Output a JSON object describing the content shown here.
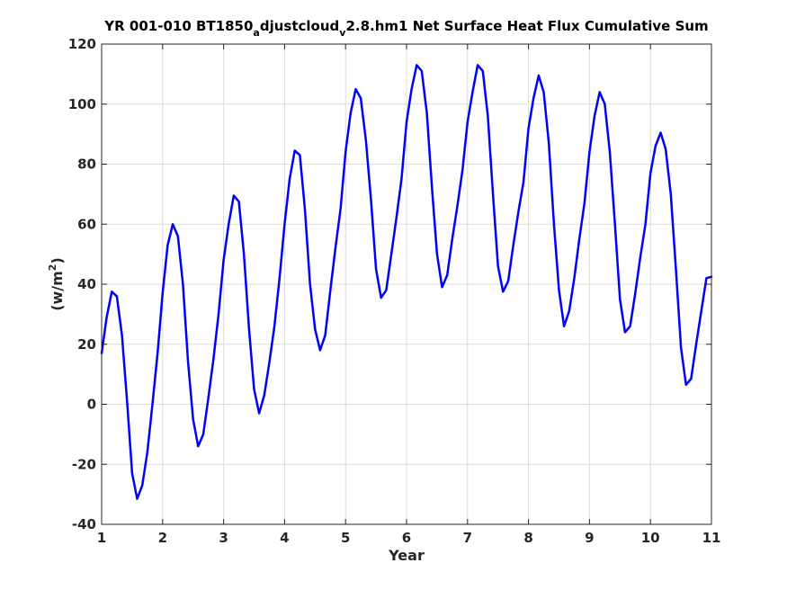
{
  "chart_data": {
    "type": "line",
    "title_parts": {
      "a": "YR 001-010 BT1850",
      "b": "a",
      "c": "djustcloud",
      "d": "v",
      "e": "2.8.hm1 Net Surface Heat Flux  Cumulative Sum"
    },
    "xlabel": "Year",
    "ylabel": "(w/m",
    "ylabel_sup": "2",
    "ylabel_close": ")",
    "xlim": [
      1,
      11
    ],
    "ylim": [
      -40,
      120
    ],
    "xticks": [
      1,
      2,
      3,
      4,
      5,
      6,
      7,
      8,
      9,
      10,
      11
    ],
    "yticks": [
      -40,
      -20,
      0,
      20,
      40,
      60,
      80,
      100,
      120
    ],
    "grid": true,
    "legend": "none",
    "colors": {
      "line": "#0000ff",
      "grid": "#dcdcdc",
      "axis": "#262626"
    },
    "series": [
      {
        "x": [
          1.0,
          1.083,
          1.167,
          1.25,
          1.333,
          1.417,
          1.5,
          1.583,
          1.667,
          1.75,
          1.833,
          1.917,
          2.0,
          2.083,
          2.167,
          2.25,
          2.333,
          2.417,
          2.5,
          2.583,
          2.667,
          2.75,
          2.833,
          2.917,
          3.0,
          3.083,
          3.167,
          3.25,
          3.333,
          3.417,
          3.5,
          3.583,
          3.667,
          3.75,
          3.833,
          3.917,
          4.0,
          4.083,
          4.167,
          4.25,
          4.333,
          4.417,
          4.5,
          4.583,
          4.667,
          4.75,
          4.833,
          4.917,
          5.0,
          5.083,
          5.167,
          5.25,
          5.333,
          5.417,
          5.5,
          5.583,
          5.667,
          5.75,
          5.833,
          5.917,
          6.0,
          6.083,
          6.167,
          6.25,
          6.333,
          6.417,
          6.5,
          6.583,
          6.667,
          6.75,
          6.833,
          6.917,
          7.0,
          7.083,
          7.167,
          7.25,
          7.333,
          7.417,
          7.5,
          7.583,
          7.667,
          7.75,
          7.833,
          7.917,
          8.0,
          8.083,
          8.167,
          8.25,
          8.333,
          8.417,
          8.5,
          8.583,
          8.667,
          8.75,
          8.833,
          8.917,
          9.0,
          9.083,
          9.167,
          9.25,
          9.333,
          9.417,
          9.5,
          9.583,
          9.667,
          9.75,
          9.833,
          9.917,
          10.0,
          10.083,
          10.167,
          10.25,
          10.333,
          10.417,
          10.5,
          10.583,
          10.667,
          10.75,
          10.833,
          10.917,
          11.0
        ],
        "y": [
          17,
          29,
          37.5,
          36,
          23,
          1,
          -23,
          -31.5,
          -27,
          -16,
          0,
          17,
          37,
          53,
          60,
          56,
          40,
          14,
          -5,
          -14,
          -10,
          2,
          15,
          30,
          48,
          60,
          69.5,
          67.5,
          50,
          25,
          5,
          -3,
          3,
          14,
          26,
          42,
          60,
          75,
          84.5,
          83,
          65,
          40,
          25,
          18,
          23,
          38,
          52,
          65,
          84,
          97,
          105,
          102,
          88,
          68,
          45,
          35.5,
          38,
          50,
          62,
          75,
          94,
          105,
          113,
          111,
          97,
          72,
          50,
          39,
          43,
          55,
          66,
          78,
          94,
          104,
          113,
          111,
          96,
          70,
          46,
          37.5,
          41,
          53,
          64,
          74,
          92,
          102,
          109.5,
          104,
          87,
          60,
          38,
          26,
          31,
          42,
          55,
          67,
          84,
          96,
          104,
          100,
          84,
          60,
          35,
          24,
          26,
          37,
          49,
          60,
          77,
          86,
          90.5,
          85,
          70,
          45,
          19,
          6.5,
          8.5,
          20,
          31,
          42,
          42.5
        ]
      }
    ]
  }
}
